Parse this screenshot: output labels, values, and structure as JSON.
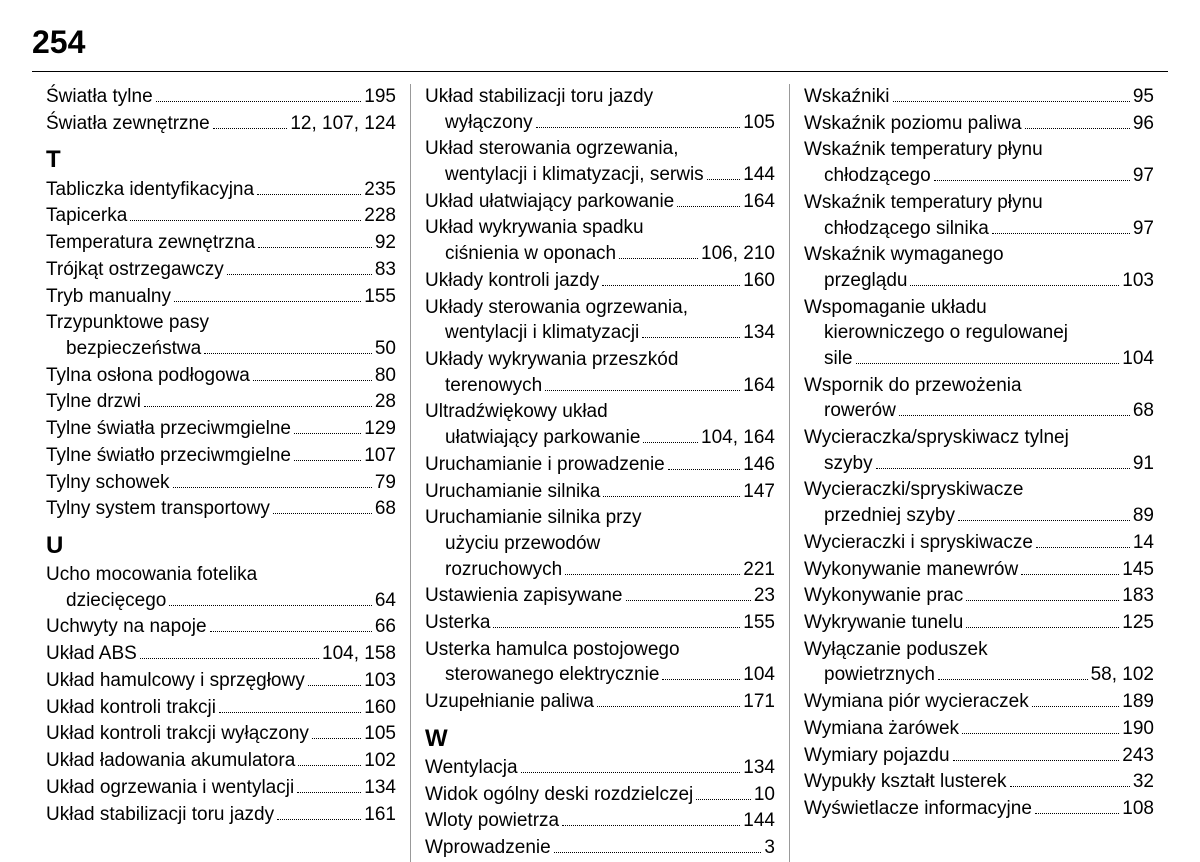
{
  "pageNumber": "254",
  "columns": [
    {
      "items": [
        {
          "type": "entry",
          "lines": [
            {
              "text": "Światła tylne"
            }
          ],
          "page": "195"
        },
        {
          "type": "entry",
          "lines": [
            {
              "text": "Światła zewnętrzne"
            }
          ],
          "page": "12, 107, 124"
        },
        {
          "type": "letter",
          "text": "T"
        },
        {
          "type": "entry",
          "lines": [
            {
              "text": "Tabliczka identyfikacyjna"
            }
          ],
          "page": "235"
        },
        {
          "type": "entry",
          "lines": [
            {
              "text": "Tapicerka"
            }
          ],
          "page": "228"
        },
        {
          "type": "entry",
          "lines": [
            {
              "text": "Temperatura zewnętrzna"
            }
          ],
          "page": "92"
        },
        {
          "type": "entry",
          "lines": [
            {
              "text": "Trójkąt ostrzegawczy"
            }
          ],
          "page": "83"
        },
        {
          "type": "entry",
          "lines": [
            {
              "text": "Tryb manualny"
            }
          ],
          "page": "155"
        },
        {
          "type": "entry",
          "lines": [
            {
              "text": "Trzypunktowe pasy",
              "cont": true
            },
            {
              "text": "bezpieczeństwa"
            }
          ],
          "page": "50"
        },
        {
          "type": "entry",
          "lines": [
            {
              "text": "Tylna osłona podłogowa"
            }
          ],
          "page": "80"
        },
        {
          "type": "entry",
          "lines": [
            {
              "text": "Tylne drzwi"
            }
          ],
          "page": "28"
        },
        {
          "type": "entry",
          "lines": [
            {
              "text": "Tylne światła przeciwmgielne"
            }
          ],
          "page": "129"
        },
        {
          "type": "entry",
          "lines": [
            {
              "text": "Tylne światło przeciwmgielne"
            }
          ],
          "page": "107"
        },
        {
          "type": "entry",
          "lines": [
            {
              "text": "Tylny schowek"
            }
          ],
          "page": "79"
        },
        {
          "type": "entry",
          "lines": [
            {
              "text": "Tylny system transportowy"
            }
          ],
          "page": "68"
        },
        {
          "type": "letter",
          "text": "U"
        },
        {
          "type": "entry",
          "lines": [
            {
              "text": "Ucho mocowania fotelika",
              "cont": true
            },
            {
              "text": "dziecięcego"
            }
          ],
          "page": "64"
        },
        {
          "type": "entry",
          "lines": [
            {
              "text": "Uchwyty na napoje"
            }
          ],
          "page": "66"
        },
        {
          "type": "entry",
          "lines": [
            {
              "text": "Układ ABS"
            }
          ],
          "page": "104, 158"
        },
        {
          "type": "entry",
          "lines": [
            {
              "text": "Układ hamulcowy i sprzęgłowy"
            }
          ],
          "page": "103"
        },
        {
          "type": "entry",
          "lines": [
            {
              "text": "Układ kontroli trakcji"
            }
          ],
          "page": "160"
        },
        {
          "type": "entry",
          "lines": [
            {
              "text": "Układ kontroli trakcji wyłączony"
            }
          ],
          "page": "105"
        },
        {
          "type": "entry",
          "lines": [
            {
              "text": "Układ ładowania akumulatora"
            }
          ],
          "page": "102"
        },
        {
          "type": "entry",
          "lines": [
            {
              "text": "Układ ogrzewania i wentylacji"
            }
          ],
          "page": "134"
        },
        {
          "type": "entry",
          "lines": [
            {
              "text": "Układ stabilizacji toru jazdy"
            }
          ],
          "page": "161"
        }
      ]
    },
    {
      "items": [
        {
          "type": "entry",
          "lines": [
            {
              "text": "Układ stabilizacji toru jazdy",
              "cont": true
            },
            {
              "text": "wyłączony"
            }
          ],
          "page": "105"
        },
        {
          "type": "entry",
          "lines": [
            {
              "text": "Układ sterowania ogrzewania,",
              "cont": true
            },
            {
              "text": "wentylacji i klimatyzacji, serwis"
            }
          ],
          "page": "144"
        },
        {
          "type": "entry",
          "lines": [
            {
              "text": "Układ ułatwiający parkowanie"
            }
          ],
          "page": "164"
        },
        {
          "type": "entry",
          "lines": [
            {
              "text": "Układ wykrywania spadku",
              "cont": true
            },
            {
              "text": "ciśnienia w oponach"
            }
          ],
          "page": "106, 210"
        },
        {
          "type": "entry",
          "lines": [
            {
              "text": "Układy kontroli jazdy"
            }
          ],
          "page": "160"
        },
        {
          "type": "entry",
          "lines": [
            {
              "text": "Układy sterowania ogrzewania,",
              "cont": true
            },
            {
              "text": "wentylacji i klimatyzacji"
            }
          ],
          "page": "134"
        },
        {
          "type": "entry",
          "lines": [
            {
              "text": "Układy wykrywania przeszkód",
              "cont": true
            },
            {
              "text": "terenowych"
            }
          ],
          "page": "164"
        },
        {
          "type": "entry",
          "lines": [
            {
              "text": "Ultradźwiękowy układ",
              "cont": true
            },
            {
              "text": "ułatwiający parkowanie"
            }
          ],
          "page": "104, 164"
        },
        {
          "type": "entry",
          "lines": [
            {
              "text": "Uruchamianie i prowadzenie"
            }
          ],
          "page": "146"
        },
        {
          "type": "entry",
          "lines": [
            {
              "text": "Uruchamianie silnika"
            }
          ],
          "page": "147"
        },
        {
          "type": "entry",
          "lines": [
            {
              "text": "Uruchamianie silnika przy",
              "cont": true
            },
            {
              "text": "użyciu przewodów",
              "cont": true
            },
            {
              "text": "rozruchowych"
            }
          ],
          "page": "221"
        },
        {
          "type": "entry",
          "lines": [
            {
              "text": "Ustawienia zapisywane"
            }
          ],
          "page": "23"
        },
        {
          "type": "entry",
          "lines": [
            {
              "text": "Usterka"
            }
          ],
          "page": "155"
        },
        {
          "type": "entry",
          "lines": [
            {
              "text": "Usterka hamulca postojowego",
              "cont": true
            },
            {
              "text": "sterowanego elektrycznie"
            }
          ],
          "page": "104"
        },
        {
          "type": "entry",
          "lines": [
            {
              "text": "Uzupełnianie paliwa"
            }
          ],
          "page": "171"
        },
        {
          "type": "letter",
          "text": "W"
        },
        {
          "type": "entry",
          "lines": [
            {
              "text": "Wentylacja"
            }
          ],
          "page": "134"
        },
        {
          "type": "entry",
          "lines": [
            {
              "text": "Widok ogólny deski rozdzielczej"
            }
          ],
          "page": "10"
        },
        {
          "type": "entry",
          "lines": [
            {
              "text": "Wloty powietrza"
            }
          ],
          "page": "144"
        },
        {
          "type": "entry",
          "lines": [
            {
              "text": "Wprowadzenie"
            }
          ],
          "page": "3"
        }
      ]
    },
    {
      "items": [
        {
          "type": "entry",
          "lines": [
            {
              "text": "Wskaźniki"
            }
          ],
          "page": "95"
        },
        {
          "type": "entry",
          "lines": [
            {
              "text": "Wskaźnik poziomu paliwa"
            }
          ],
          "page": "96"
        },
        {
          "type": "entry",
          "lines": [
            {
              "text": "Wskaźnik temperatury płynu",
              "cont": true
            },
            {
              "text": "chłodzącego"
            }
          ],
          "page": "97"
        },
        {
          "type": "entry",
          "lines": [
            {
              "text": "Wskaźnik temperatury płynu",
              "cont": true
            },
            {
              "text": "chłodzącego silnika"
            }
          ],
          "page": "97"
        },
        {
          "type": "entry",
          "lines": [
            {
              "text": "Wskaźnik wymaganego",
              "cont": true
            },
            {
              "text": "przeglądu"
            }
          ],
          "page": "103"
        },
        {
          "type": "entry",
          "lines": [
            {
              "text": "Wspomaganie układu",
              "cont": true
            },
            {
              "text": "kierowniczego o regulowanej",
              "cont": true
            },
            {
              "text": "sile"
            }
          ],
          "page": "104"
        },
        {
          "type": "entry",
          "lines": [
            {
              "text": "Wspornik do przewożenia",
              "cont": true
            },
            {
              "text": "rowerów"
            }
          ],
          "page": "68"
        },
        {
          "type": "entry",
          "lines": [
            {
              "text": "Wycieraczka/spryskiwacz tylnej",
              "cont": true
            },
            {
              "text": "szyby"
            }
          ],
          "page": "91"
        },
        {
          "type": "entry",
          "lines": [
            {
              "text": "Wycieraczki/spryskiwacze",
              "cont": true
            },
            {
              "text": "przedniej szyby"
            }
          ],
          "page": "89"
        },
        {
          "type": "entry",
          "lines": [
            {
              "text": "Wycieraczki i spryskiwacze"
            }
          ],
          "page": "14"
        },
        {
          "type": "entry",
          "lines": [
            {
              "text": "Wykonywanie manewrów"
            }
          ],
          "page": "145"
        },
        {
          "type": "entry",
          "lines": [
            {
              "text": "Wykonywanie prac"
            }
          ],
          "page": "183"
        },
        {
          "type": "entry",
          "lines": [
            {
              "text": "Wykrywanie tunelu"
            }
          ],
          "page": "125"
        },
        {
          "type": "entry",
          "lines": [
            {
              "text": "Wyłączanie poduszek",
              "cont": true
            },
            {
              "text": "powietrznych"
            }
          ],
          "page": "58, 102"
        },
        {
          "type": "entry",
          "lines": [
            {
              "text": "Wymiana piór wycieraczek"
            }
          ],
          "page": "189"
        },
        {
          "type": "entry",
          "lines": [
            {
              "text": "Wymiana żarówek"
            }
          ],
          "page": "190"
        },
        {
          "type": "entry",
          "lines": [
            {
              "text": "Wymiary pojazdu"
            }
          ],
          "page": "243"
        },
        {
          "type": "entry",
          "lines": [
            {
              "text": "Wypukły kształt lusterek"
            }
          ],
          "page": "32"
        },
        {
          "type": "entry",
          "lines": [
            {
              "text": "Wyświetlacze informacyjne"
            }
          ],
          "page": "108"
        }
      ]
    }
  ]
}
